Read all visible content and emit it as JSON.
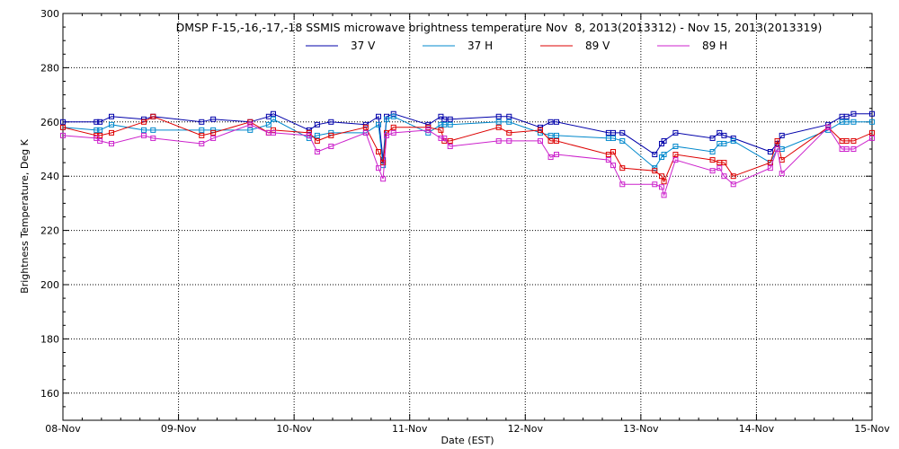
{
  "chart_data": {
    "type": "line",
    "title": "DMSP F-15,-16,-17,-18 SSMIS microwave brightness temperature Nov  8, 2013(2013312) - Nov 15, 2013(2013319)",
    "xlabel": "Date (EST)",
    "ylabel": "Brightness Temperature, Deg K",
    "xlim": [
      0,
      7
    ],
    "ylim": [
      150,
      300
    ],
    "x_tick_labels": [
      "08-Nov",
      "09-Nov",
      "10-Nov",
      "11-Nov",
      "12-Nov",
      "13-Nov",
      "14-Nov",
      "15-Nov"
    ],
    "y_ticks": [
      160,
      180,
      200,
      220,
      240,
      260,
      280,
      300
    ],
    "grid": true,
    "legend_position": "top-center",
    "colors": {
      "37 V": "#0000aa",
      "37 H": "#0088cc",
      "89 V": "#dd0000",
      "89 H": "#cc22cc"
    },
    "series": [
      {
        "name": "37 V",
        "x": [
          0,
          0.29,
          0.32,
          0.42,
          0.7,
          0.78,
          1.2,
          1.3,
          1.62,
          1.78,
          1.82,
          2.13,
          2.2,
          2.32,
          2.62,
          2.73,
          2.77,
          2.8,
          2.86,
          3.16,
          3.27,
          3.3,
          3.35,
          3.77,
          3.86,
          4.13,
          4.22,
          4.27,
          4.72,
          4.76,
          4.84,
          5.12,
          5.18,
          5.2,
          5.3,
          5.62,
          5.68,
          5.72,
          5.8,
          6.12,
          6.18,
          6.22,
          6.62,
          6.74,
          6.78,
          6.84,
          7
        ],
        "y": [
          260,
          260,
          260,
          262,
          261,
          262,
          260,
          261,
          260,
          262,
          263,
          257,
          259,
          260,
          259,
          262,
          246,
          262,
          263,
          259,
          262,
          261,
          261,
          262,
          262,
          258,
          260,
          260,
          256,
          256,
          256,
          248,
          252,
          253,
          256,
          254,
          256,
          255,
          254,
          249,
          252,
          255,
          259,
          262,
          262,
          263,
          263
        ]
      },
      {
        "name": "37 H",
        "x": [
          0,
          0.29,
          0.32,
          0.42,
          0.7,
          0.78,
          1.2,
          1.3,
          1.62,
          1.78,
          1.82,
          2.13,
          2.2,
          2.32,
          2.62,
          2.73,
          2.77,
          2.8,
          2.86,
          3.16,
          3.27,
          3.3,
          3.35,
          3.77,
          3.86,
          4.13,
          4.22,
          4.27,
          4.72,
          4.76,
          4.84,
          5.12,
          5.18,
          5.2,
          5.3,
          5.62,
          5.68,
          5.72,
          5.8,
          6.12,
          6.18,
          6.22,
          6.62,
          6.74,
          6.78,
          6.84,
          7
        ],
        "y": [
          258,
          257,
          257,
          259,
          257,
          257,
          257,
          257,
          257,
          259,
          261,
          254,
          255,
          256,
          256,
          259,
          244,
          261,
          262,
          256,
          259,
          259,
          259,
          260,
          260,
          256,
          255,
          255,
          254,
          254,
          253,
          243,
          247,
          248,
          251,
          249,
          252,
          252,
          253,
          245,
          250,
          250,
          257,
          260,
          260,
          260,
          260
        ]
      },
      {
        "name": "89 V",
        "x": [
          0,
          0.29,
          0.32,
          0.42,
          0.7,
          0.78,
          1.2,
          1.3,
          1.62,
          1.78,
          1.82,
          2.13,
          2.2,
          2.32,
          2.62,
          2.73,
          2.77,
          2.8,
          2.86,
          3.16,
          3.27,
          3.3,
          3.35,
          3.77,
          3.86,
          4.13,
          4.22,
          4.27,
          4.72,
          4.76,
          4.84,
          5.12,
          5.18,
          5.2,
          5.3,
          5.62,
          5.68,
          5.72,
          5.8,
          6.12,
          6.18,
          6.22,
          6.62,
          6.74,
          6.78,
          6.84,
          7
        ],
        "y": [
          258,
          255,
          255,
          256,
          260,
          262,
          255,
          256,
          260,
          256,
          257,
          256,
          253,
          255,
          258,
          249,
          245,
          256,
          258,
          258,
          257,
          253,
          253,
          258,
          256,
          257,
          253,
          253,
          248,
          249,
          243,
          242,
          240,
          238,
          248,
          246,
          245,
          245,
          240,
          245,
          253,
          246,
          258,
          253,
          253,
          253,
          256
        ]
      },
      {
        "name": "89 H",
        "x": [
          0,
          0.29,
          0.32,
          0.42,
          0.7,
          0.78,
          1.2,
          1.3,
          1.62,
          1.78,
          1.82,
          2.13,
          2.2,
          2.32,
          2.62,
          2.73,
          2.77,
          2.8,
          2.86,
          3.16,
          3.27,
          3.3,
          3.35,
          3.77,
          3.86,
          4.13,
          4.22,
          4.27,
          4.72,
          4.76,
          4.84,
          5.12,
          5.18,
          5.2,
          5.3,
          5.62,
          5.68,
          5.72,
          5.8,
          6.12,
          6.18,
          6.22,
          6.62,
          6.74,
          6.78,
          6.84,
          7
        ],
        "y": [
          255,
          254,
          253,
          252,
          255,
          254,
          252,
          254,
          259,
          256,
          256,
          255,
          249,
          251,
          256,
          243,
          239,
          255,
          256,
          257,
          254,
          254,
          251,
          253,
          253,
          253,
          247,
          248,
          246,
          244,
          237,
          237,
          236,
          233,
          246,
          242,
          243,
          240,
          237,
          243,
          250,
          241,
          258,
          250,
          250,
          250,
          254
        ]
      }
    ]
  }
}
